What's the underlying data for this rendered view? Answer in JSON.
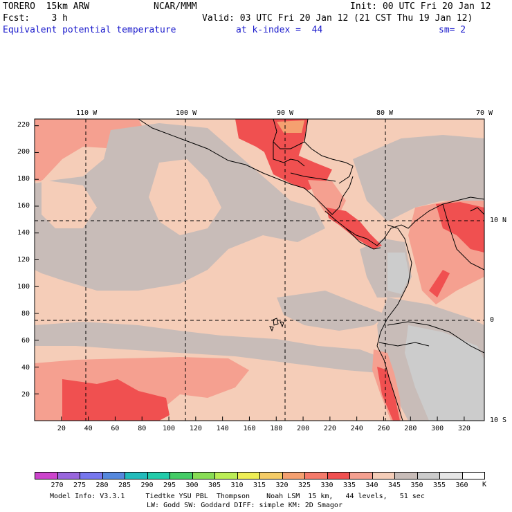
{
  "header": {
    "model": "TORERO  15km ARW",
    "org": "NCAR/MMM",
    "init": "Init: 00 UTC Fri 20 Jan 12",
    "fcst": "Fcst:    3 h",
    "valid": "Valid: 03 UTC Fri 20 Jan 12 (21 CST Thu 19 Jan 12)",
    "field": "Equivalent potential temperature",
    "level": "at k-index =  44",
    "smooth": "sm= 2"
  },
  "top_lon_labels": [
    "110 W",
    "100 W",
    "90 W",
    "80 W",
    "70 W"
  ],
  "right_lat_labels": [
    "10 N",
    "0",
    "10 S"
  ],
  "y_ticks": [
    "220",
    "200",
    "180",
    "160",
    "140",
    "120",
    "100",
    "80",
    "60",
    "40",
    "20"
  ],
  "x_ticks": [
    "20",
    "40",
    "60",
    "80",
    "100",
    "120",
    "140",
    "160",
    "180",
    "200",
    "220",
    "240",
    "260",
    "280",
    "300",
    "320"
  ],
  "colorbar": {
    "labels": [
      "270",
      "275",
      "280",
      "285",
      "290",
      "295",
      "300",
      "305",
      "310",
      "315",
      "320",
      "325",
      "330",
      "335",
      "340",
      "345",
      "350",
      "355",
      "360"
    ],
    "unit": "K",
    "colors": [
      "#cc44cc",
      "#9966dd",
      "#7777ee",
      "#5588dd",
      "#22bbbb",
      "#22ccaa",
      "#44cc66",
      "#88dd55",
      "#bbee55",
      "#eeee55",
      "#f5cc66",
      "#f5a070",
      "#f57a6a",
      "#f05050",
      "#f5a090",
      "#f5cdb8",
      "#c8bcb8",
      "#cccccc",
      "#e6e6e6",
      "#ffffff"
    ]
  },
  "footer": {
    "line1": "Model Info: V3.3.1     Tiedtke YSU PBL  Thompson    Noah LSM  15 km,   44 levels,   51 sec",
    "line2": "LW: Godd SW: Goddard DIFF: simple KM: 2D Smagor"
  },
  "colors": {
    "peach": "#f5cdb8",
    "gray": "#c8bcb8",
    "lightgray": "#cccccc",
    "salmon": "#f5a090",
    "red": "#f05050",
    "orange": "#f5a070",
    "blue_text": "#1a1acc"
  }
}
